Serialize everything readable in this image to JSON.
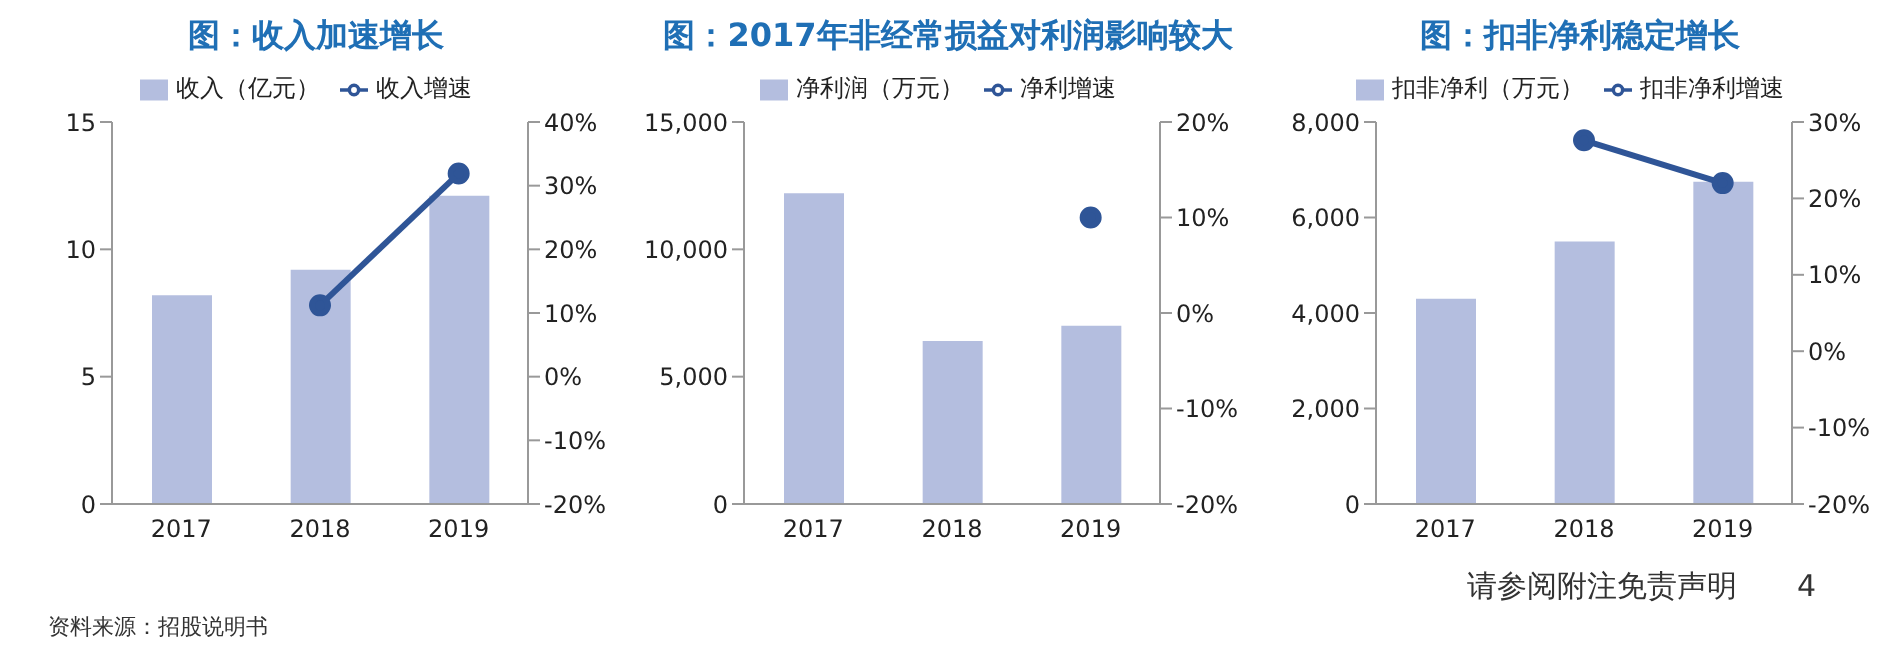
{
  "chart_data": [
    {
      "type": "bar",
      "title": "图：收入加速增长",
      "categories": [
        "2017",
        "2018",
        "2019"
      ],
      "series": [
        {
          "name": "收入（亿元）",
          "color": "#b4bedf",
          "values": [
            8.2,
            9.2,
            12.1
          ]
        },
        {
          "name": "收入增速",
          "type": "line",
          "axis": "y2",
          "color": "#2f5597",
          "values": [
            null,
            11.2,
            31.9
          ]
        }
      ],
      "ylim": [
        0,
        15
      ],
      "yticks": [
        0,
        5,
        10,
        15
      ],
      "y2lim": [
        -20,
        40
      ],
      "y2ticks": [
        {
          "value": -20,
          "label": "-20%"
        },
        {
          "value": -10,
          "label": "-10%"
        },
        {
          "value": 0,
          "label": "0%"
        },
        {
          "value": 10,
          "label": "10%"
        },
        {
          "value": 20,
          "label": "20%"
        },
        {
          "value": 30,
          "label": "30%"
        },
        {
          "value": 40,
          "label": "40%"
        }
      ],
      "legend": "top",
      "marker": "circle",
      "grid": false,
      "annotations": [
        "资料来源：招股说明书"
      ]
    },
    {
      "type": "bar",
      "title": "图：2017年非经常损益对利润影响较大",
      "categories": [
        "2017",
        "2018",
        "2019"
      ],
      "series": [
        {
          "name": "净利润（万元）",
          "color": "#b4bedf",
          "values": [
            12200,
            6400,
            7000
          ]
        },
        {
          "name": "净利增速",
          "type": "line",
          "axis": "y2",
          "color": "#2f5597",
          "values": [
            null,
            null,
            10
          ]
        }
      ],
      "ylim": [
        0,
        15000
      ],
      "yticks": [
        0,
        {
          "value": 5000,
          "label": "5,000"
        },
        {
          "value": 10000,
          "label": "10,000"
        },
        {
          "value": 15000,
          "label": "15,000"
        }
      ],
      "y2lim": [
        -20,
        20
      ],
      "y2ticks": [
        {
          "value": -20,
          "label": "-20%"
        },
        {
          "value": -10,
          "label": "-10%"
        },
        {
          "value": 0,
          "label": "0%"
        },
        {
          "value": 10,
          "label": "10%"
        },
        {
          "value": 20,
          "label": "20%"
        }
      ],
      "legend": "top",
      "marker": "circle",
      "grid": false
    },
    {
      "type": "bar",
      "title": "图：扣非净利稳定增长",
      "categories": [
        "2017",
        "2018",
        "2019"
      ],
      "series": [
        {
          "name": "扣非净利（万元）",
          "color": "#b4bedf",
          "values": [
            4300,
            5500,
            6750
          ]
        },
        {
          "name": "扣非净利增速",
          "type": "line",
          "axis": "y2",
          "color": "#2f5597",
          "values": [
            null,
            27.6,
            22.0
          ]
        }
      ],
      "ylim": [
        0,
        8000
      ],
      "yticks": [
        0,
        {
          "value": 2000,
          "label": "2,000"
        },
        {
          "value": 4000,
          "label": "4,000"
        },
        {
          "value": 6000,
          "label": "6,000"
        },
        {
          "value": 8000,
          "label": "8,000"
        }
      ],
      "y2lim": [
        -20,
        30
      ],
      "y2ticks": [
        {
          "value": -20,
          "label": "-20%"
        },
        {
          "value": -10,
          "label": "-10%"
        },
        {
          "value": 0,
          "label": "0%"
        },
        {
          "value": 10,
          "label": "10%"
        },
        {
          "value": 20,
          "label": "20%"
        },
        {
          "value": 30,
          "label": "30%"
        }
      ],
      "legend": "top",
      "marker": "circle",
      "grid": false,
      "annotations": [
        "请参阅附注免责声明",
        "4"
      ]
    }
  ]
}
